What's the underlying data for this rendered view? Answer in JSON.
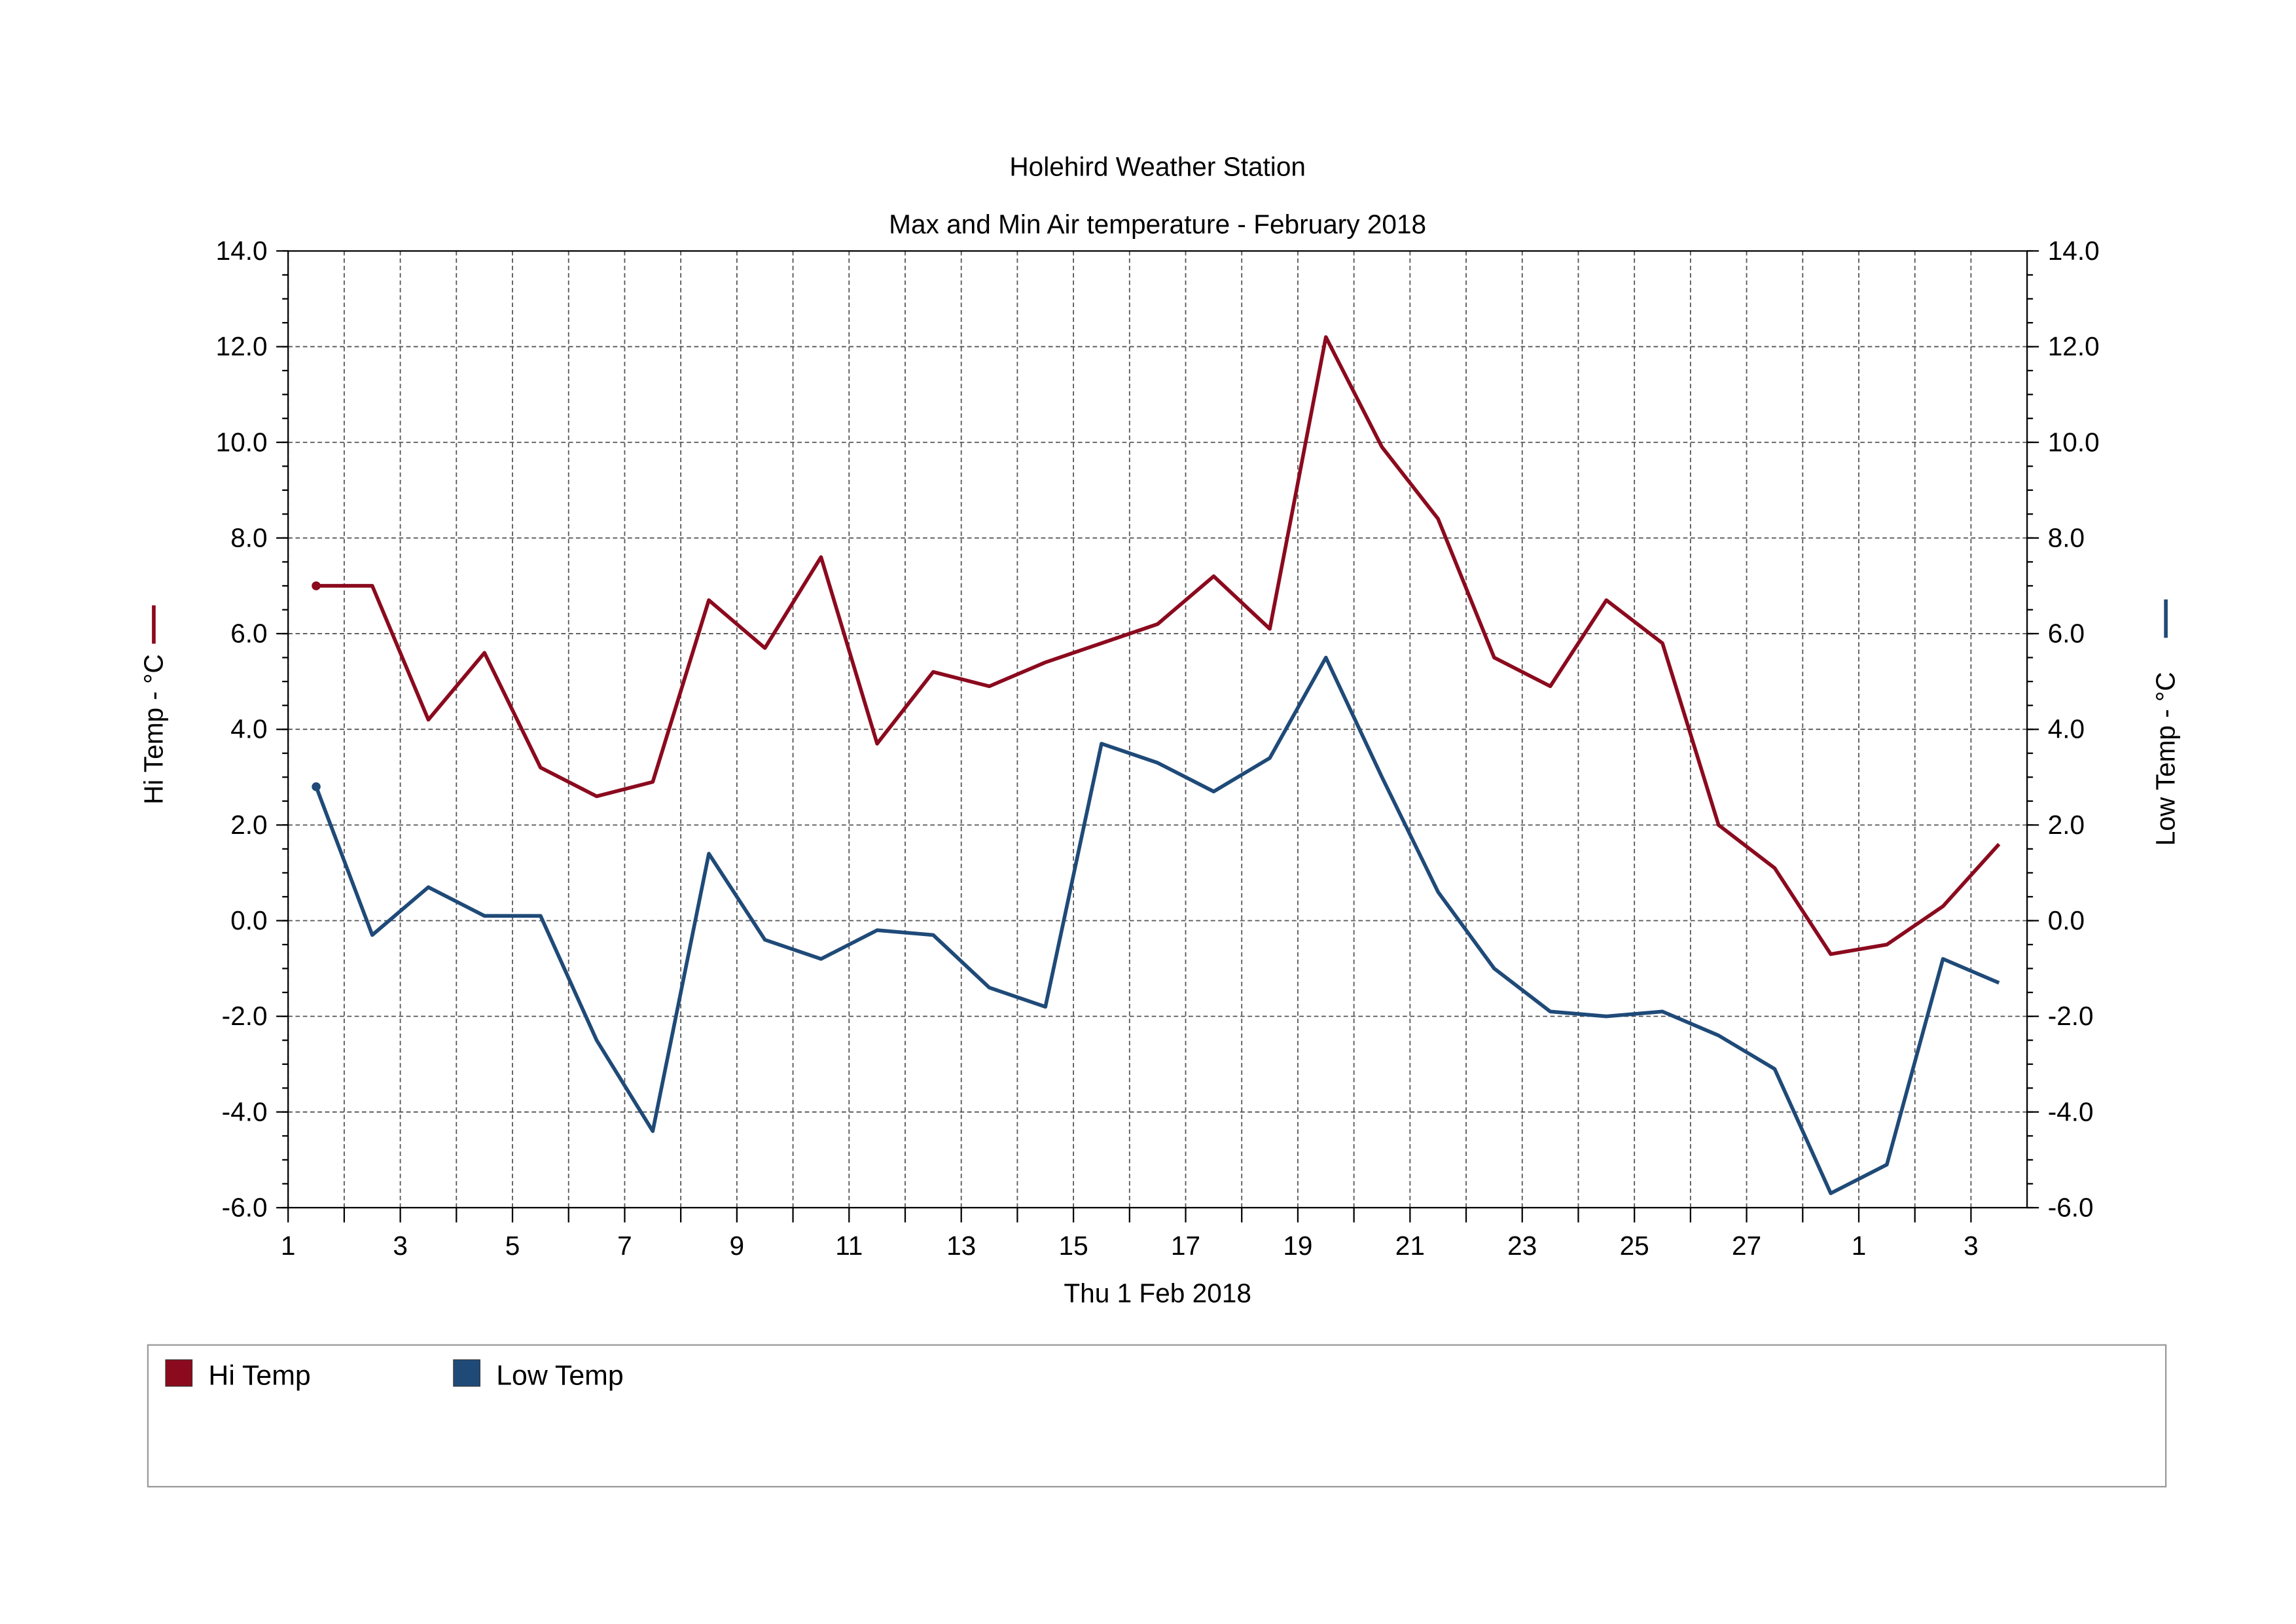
{
  "chart_data": {
    "type": "line",
    "title": "Holehird Weather Station",
    "subtitle": "Max and Min Air temperature - February 2018",
    "x_label": "Thu 1 Feb 2018",
    "y_label": "Hi Temp - °C",
    "y2_label": "Low Temp - °C",
    "x": [
      1.5,
      2.5,
      3.5,
      4.5,
      5.5,
      6.5,
      7.5,
      8.5,
      9.5,
      10.5,
      11.5,
      12.5,
      13.5,
      14.5,
      15.5,
      16.5,
      17.5,
      18.5,
      19.5,
      20.5,
      21.5,
      22.5,
      23.5,
      24.5,
      25.5,
      26.5,
      27.5,
      28.5,
      29.5,
      30.5,
      31.5
    ],
    "series": [
      {
        "name": "Hi Temp",
        "color": "#8b0a1e",
        "axis": "y",
        "values": [
          7.0,
          7.0,
          4.2,
          5.6,
          3.2,
          2.6,
          2.9,
          6.7,
          5.7,
          7.6,
          3.7,
          5.2,
          4.9,
          5.4,
          5.8,
          6.2,
          7.2,
          6.1,
          12.2,
          9.9,
          8.4,
          5.5,
          4.9,
          6.7,
          5.8,
          2.0,
          1.1,
          -0.7,
          -0.5,
          0.3,
          1.6
        ]
      },
      {
        "name": "Low Temp",
        "color": "#1f4a78",
        "axis": "y2",
        "values": [
          2.8,
          -0.3,
          0.7,
          0.1,
          0.1,
          -2.5,
          -4.4,
          1.4,
          -0.4,
          -0.8,
          -0.2,
          -0.3,
          -1.4,
          -1.8,
          3.7,
          3.3,
          2.7,
          3.4,
          5.5,
          3.0,
          0.6,
          -1.0,
          -1.9,
          -2.0,
          -1.9,
          -2.4,
          -3.1,
          -5.7,
          -5.1,
          -0.8,
          -1.3
        ]
      }
    ],
    "xlim": [
      1,
      32
    ],
    "xticks": [
      1,
      3,
      5,
      7,
      9,
      11,
      13,
      15,
      17,
      19,
      21,
      23,
      25,
      27,
      {
        "value": 29,
        "label": "1"
      },
      {
        "value": 31,
        "label": "3"
      }
    ],
    "xminor_ticks": [
      2,
      4,
      6,
      8,
      10,
      12,
      14,
      16,
      18,
      20,
      22,
      24,
      26,
      28,
      30
    ],
    "ylim": [
      -6,
      14
    ],
    "yticks": [
      {
        "value": -6,
        "label": "-6.0"
      },
      {
        "value": -4,
        "label": "-4.0"
      },
      {
        "value": -2,
        "label": "-2.0"
      },
      {
        "value": 0,
        "label": "0.0"
      },
      {
        "value": 2,
        "label": "2.0"
      },
      {
        "value": 4,
        "label": "4.0"
      },
      {
        "value": 6,
        "label": "6.0"
      },
      {
        "value": 8,
        "label": "8.0"
      },
      {
        "value": 10,
        "label": "10.0"
      },
      {
        "value": 12,
        "label": "12.0"
      },
      {
        "value": 14,
        "label": "14.0"
      }
    ],
    "y2lim": [
      -6,
      14
    ],
    "y2ticks": [
      {
        "value": -6,
        "label": "-6.0"
      },
      {
        "value": -4,
        "label": "-4.0"
      },
      {
        "value": -2,
        "label": "-2.0"
      },
      {
        "value": 0,
        "label": "0.0"
      },
      {
        "value": 2,
        "label": "2.0"
      },
      {
        "value": 4,
        "label": "4.0"
      },
      {
        "value": 6,
        "label": "6.0"
      },
      {
        "value": 8,
        "label": "8.0"
      },
      {
        "value": 10,
        "label": "10.0"
      },
      {
        "value": 12,
        "label": "12.0"
      },
      {
        "value": 14,
        "label": "14.0"
      }
    ],
    "grid": true,
    "legend": "bottom"
  }
}
